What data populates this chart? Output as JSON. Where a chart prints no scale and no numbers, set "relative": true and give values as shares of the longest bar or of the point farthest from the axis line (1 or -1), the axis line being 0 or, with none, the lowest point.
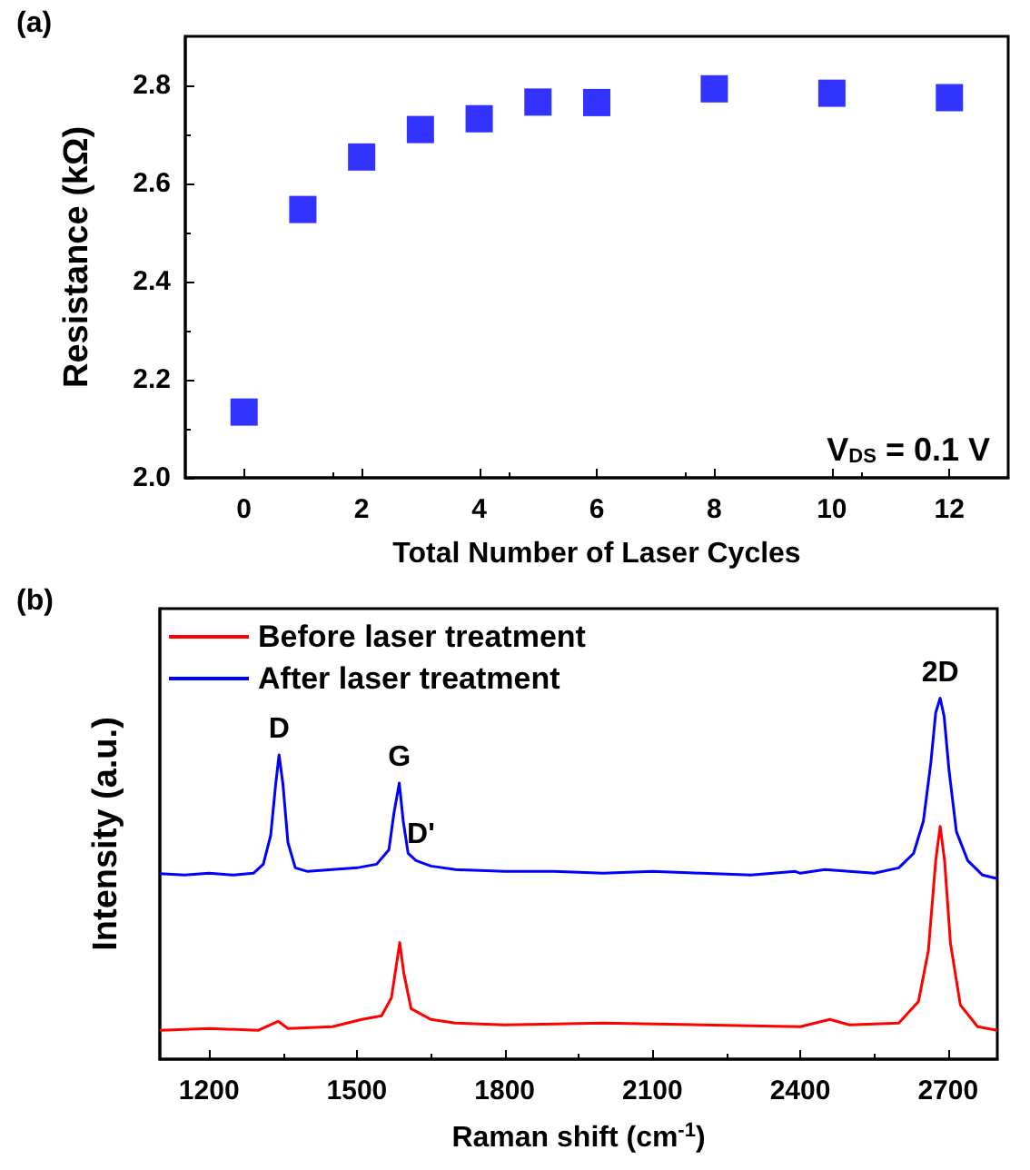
{
  "chart_data": [
    {
      "type": "scatter",
      "title": "(a)",
      "xlabel": "Total Number of Laser Cycles",
      "ylabel": "Resistance (kΩ)",
      "x": [
        0,
        1,
        2,
        3,
        4,
        5,
        6,
        8,
        10,
        12
      ],
      "values": [
        2.134,
        2.547,
        2.654,
        2.71,
        2.732,
        2.766,
        2.765,
        2.793,
        2.784,
        2.775
      ],
      "color": "#0000ff",
      "marker": "square",
      "xlim": [
        -1,
        13
      ],
      "xticks": [
        0,
        2,
        4,
        6,
        8,
        10,
        12
      ],
      "ylim": [
        2.0,
        2.9
      ],
      "yticks": [
        {
          "value": 2.0,
          "label": "2.0"
        },
        {
          "value": 2.2,
          "label": "2.2"
        },
        {
          "value": 2.4,
          "label": "2.4"
        },
        {
          "value": 2.6,
          "label": "2.6"
        },
        {
          "value": 2.8,
          "label": "2.8"
        }
      ],
      "annotations": [
        "V$_{DS}$ = 0.1 V"
      ]
    },
    {
      "type": "line",
      "title": "(b)",
      "xlabel": "Raman shift (cm$^{-1}$)",
      "ylabel": "Intensity (a.u.)",
      "relative": true,
      "tick_labels": "x",
      "legend": "top left",
      "xlim": [
        1100,
        2800
      ],
      "xticks": [
        1200,
        1500,
        1800,
        2100,
        2400,
        2700
      ],
      "series": [
        {
          "name": "Before laser treatment",
          "color": "#ff0000",
          "x": [
            1100,
            1200,
            1300,
            1340,
            1360,
            1450,
            1510,
            1550,
            1570,
            1580,
            1587,
            1595,
            1610,
            1650,
            1700,
            1800,
            2000,
            2200,
            2400,
            2460,
            2500,
            2600,
            2640,
            2660,
            2675,
            2684,
            2693,
            2705,
            2725,
            2760,
            2800
          ],
          "values": [
            0.08,
            0.085,
            0.08,
            0.105,
            0.085,
            0.09,
            0.11,
            0.12,
            0.17,
            0.26,
            0.323,
            0.24,
            0.14,
            0.11,
            0.1,
            0.095,
            0.1,
            0.095,
            0.09,
            0.11,
            0.095,
            0.1,
            0.16,
            0.3,
            0.55,
            0.645,
            0.55,
            0.32,
            0.15,
            0.09,
            0.08
          ]
        },
        {
          "name": "After laser treatment",
          "color": "#0000ff",
          "x": [
            1100,
            1150,
            1200,
            1250,
            1290,
            1310,
            1325,
            1335,
            1342,
            1350,
            1360,
            1375,
            1400,
            1450,
            1500,
            1540,
            1565,
            1575,
            1586,
            1594,
            1604,
            1620,
            1650,
            1700,
            1800,
            1900,
            2000,
            2100,
            2200,
            2300,
            2390,
            2400,
            2450,
            2500,
            2550,
            2600,
            2630,
            2650,
            2665,
            2675,
            2684,
            2692,
            2702,
            2717,
            2740,
            2770,
            2800
          ],
          "values": [
            0.514,
            0.51,
            0.515,
            0.51,
            0.515,
            0.54,
            0.62,
            0.76,
            0.843,
            0.76,
            0.6,
            0.53,
            0.52,
            0.525,
            0.53,
            0.54,
            0.58,
            0.68,
            0.765,
            0.66,
            0.57,
            0.55,
            0.535,
            0.525,
            0.52,
            0.52,
            0.515,
            0.52,
            0.515,
            0.51,
            0.52,
            0.515,
            0.525,
            0.52,
            0.515,
            0.53,
            0.57,
            0.66,
            0.82,
            0.96,
            1.0,
            0.95,
            0.8,
            0.63,
            0.55,
            0.51,
            0.5
          ]
        }
      ],
      "annotations": [
        {
          "text": "D",
          "x": 1342,
          "y": 0.843
        },
        {
          "text": "G",
          "x": 1586,
          "y": 0.765
        },
        {
          "text": "D'",
          "x": 1630,
          "y": 0.55
        },
        {
          "text": "2D",
          "x": 2684,
          "y": 1.0
        }
      ]
    }
  ]
}
